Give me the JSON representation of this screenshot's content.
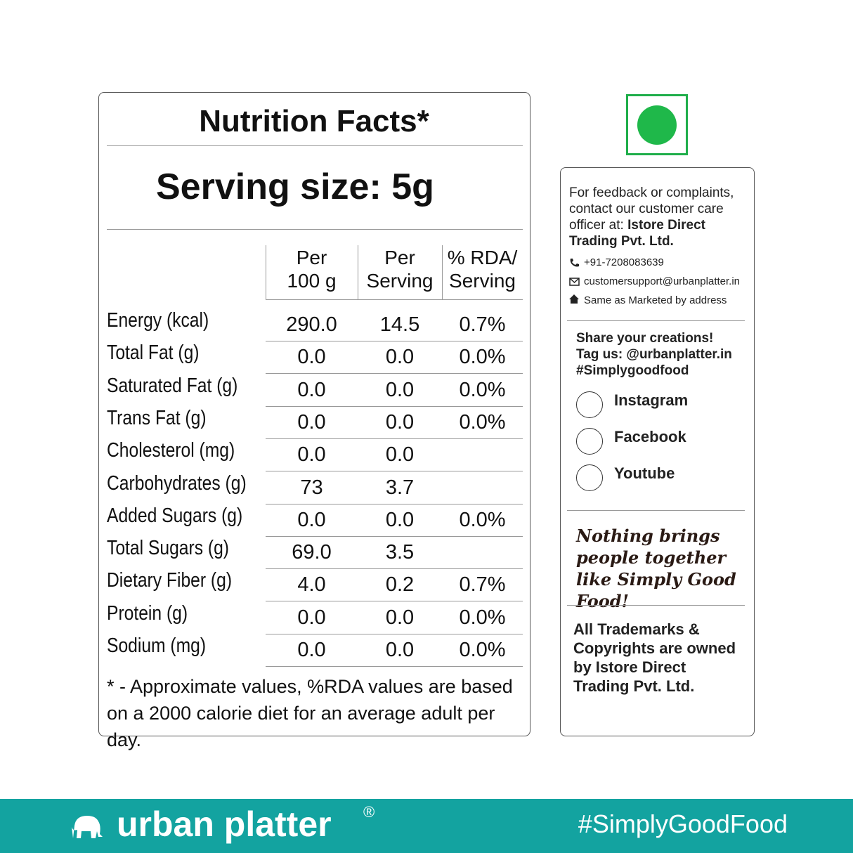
{
  "nutrition": {
    "title": "Nutrition Facts*",
    "serving": "Serving size: 5g",
    "columns": [
      "Per\n100 g",
      "Per\nServing",
      "% RDA/\nServing"
    ],
    "rows": [
      [
        "Energy (kcal)",
        "290.0",
        "14.5",
        "0.7%"
      ],
      [
        "Total Fat (g)",
        "0.0",
        "0.0",
        "0.0%"
      ],
      [
        "Saturated Fat (g)",
        "0.0",
        "0.0",
        "0.0%"
      ],
      [
        "Trans Fat (g)",
        "0.0",
        "0.0",
        "0.0%"
      ],
      [
        "Cholesterol (mg)",
        "0.0",
        "0.0",
        null
      ],
      [
        "Carbohydrates (g)",
        "73",
        "3.7",
        null
      ],
      [
        "Added Sugars (g)",
        "0.0",
        "0.0",
        "0.0%"
      ],
      [
        "Total Sugars (g)",
        "69.0",
        "3.5",
        null
      ],
      [
        "Dietary Fiber (g)",
        "4.0",
        "0.2",
        "0.7%"
      ],
      [
        "Protein (g)",
        "0.0",
        "0.0",
        "0.0%"
      ],
      [
        "Sodium (mg)",
        "0.0",
        "0.0",
        "0.0%"
      ]
    ],
    "footnote": "* - Approximate values, %RDA values are based on a 2000 calorie diet for an average adult per day."
  },
  "contact": {
    "intro": "For feedback or complaints, contact our customer care officer at:",
    "company": "Istore Direct Trading Pvt. Ltd.",
    "phone": "+91-7208083639",
    "email": "customersupport@urbanplatter.in",
    "address": "Same as Marketed by address"
  },
  "share": {
    "lines": [
      "Share your creations!",
      "Tag us: @urbanplatter.in",
      "#Simplygoodfood"
    ],
    "social": [
      "Instagram",
      "Facebook",
      "Youtube"
    ]
  },
  "slogan": "Nothing brings people together like Simply Good Food!",
  "trademark": "All Trademarks & Copyrights are owned by Istore Direct Trading Pvt. Ltd.",
  "footer": {
    "brand": "urban platter",
    "registered": "®",
    "hashtag": "#SimplyGoodFood"
  }
}
